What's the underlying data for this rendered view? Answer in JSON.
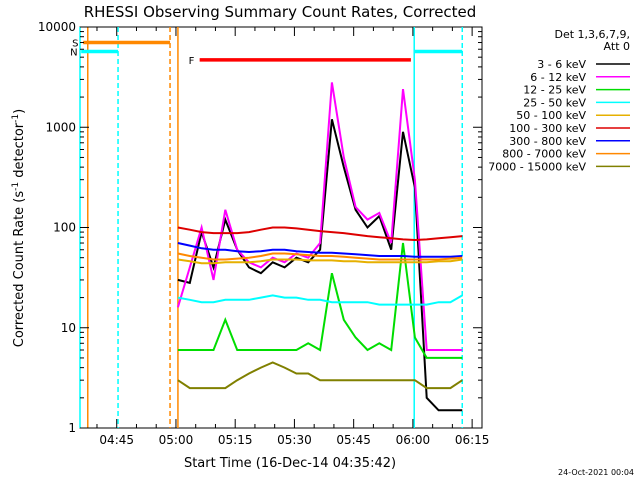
{
  "chart_data": {
    "type": "line",
    "title": "RHESSI Observing Summary Count Rates, Corrected",
    "xlabel": "Start Time (16-Dec-14 04:35:42)",
    "ylabel_main": "Corrected Count Rate (s",
    "ylabel_sup1": "-1",
    "ylabel_mid": " detector",
    "ylabel_sup2": "-1",
    "ylabel_end": ")",
    "y_scale": "log",
    "ylim": [
      1,
      10000
    ],
    "xlim_minutes": [
      "04:35:42",
      "06:17:30"
    ],
    "x_ticks": [
      "04:45",
      "05:00",
      "05:15",
      "05:30",
      "05:45",
      "06:00",
      "06:15"
    ],
    "y_ticks": [
      "1",
      "10",
      "100",
      "1000",
      "10000"
    ],
    "legend": {
      "placement": "right",
      "header_line1": "Det 1,3,6,7,9,",
      "header_line2": "Att 0",
      "entries": [
        {
          "label": "3 - 6 keV",
          "color": "#000000"
        },
        {
          "label": "6 - 12 keV",
          "color": "#ff00ff"
        },
        {
          "label": "12 - 25 keV",
          "color": "#00dd00"
        },
        {
          "label": "25 - 50 keV",
          "color": "#00ffff"
        },
        {
          "label": "50 - 100 keV",
          "color": "#e6b000"
        },
        {
          "label": "100 - 300 keV",
          "color": "#dd0000"
        },
        {
          "label": "300 - 800 keV",
          "color": "#0000ff"
        },
        {
          "label": "800 - 7000 keV",
          "color": "#ff8800"
        },
        {
          "label": "7000 - 15000 keV",
          "color": "#808000"
        }
      ]
    },
    "flags": [
      {
        "label": "S",
        "color": "#ff8800",
        "start": "04:36:30",
        "end": "04:58:30",
        "level": 7000
      },
      {
        "label": "N",
        "color": "#00ffff",
        "start": "04:36:00",
        "end": "04:45:20",
        "level": 5700
      },
      {
        "label": "F",
        "color": "#ff0000",
        "start": "05:06:00",
        "end": "05:59:30",
        "level": 4700
      },
      {
        "label": "",
        "color": "#00ffff",
        "start": "06:00:30",
        "end": "06:12:30",
        "level": 5700
      }
    ],
    "vlines": [
      {
        "time": "04:35:42",
        "color": "#00ffff",
        "style": "solid"
      },
      {
        "time": "04:37:40",
        "color": "#ff8800",
        "style": "solid"
      },
      {
        "time": "04:45:20",
        "color": "#00ffff",
        "style": "dashed"
      },
      {
        "time": "04:58:30",
        "color": "#ff8800",
        "style": "dashed"
      },
      {
        "time": "05:00:30",
        "color": "#ff8800",
        "style": "solid"
      },
      {
        "time": "06:00:20",
        "color": "#00ffff",
        "style": "solid"
      },
      {
        "time": "06:12:30",
        "color": "#00ffff",
        "style": "dashed"
      }
    ],
    "series_time_minutes": [
      0,
      3,
      6,
      9,
      12,
      15,
      18,
      21,
      24,
      27,
      30,
      33,
      36,
      39,
      42,
      45,
      48,
      51,
      54,
      57,
      60,
      63,
      66,
      69,
      72
    ],
    "series_start": "05:00:30",
    "series": [
      {
        "name": "3 - 6 keV",
        "color": "#000000",
        "values": [
          30,
          28,
          90,
          40,
          120,
          60,
          40,
          35,
          45,
          40,
          50,
          45,
          60,
          1200,
          400,
          150,
          100,
          130,
          60,
          900,
          250,
          2,
          1.5,
          1.5,
          1.5
        ]
      },
      {
        "name": "6 - 12 keV",
        "color": "#ff00ff",
        "values": [
          16,
          40,
          100,
          30,
          150,
          60,
          45,
          40,
          50,
          45,
          55,
          50,
          70,
          2800,
          500,
          160,
          120,
          140,
          70,
          2400,
          300,
          6,
          6,
          6,
          6
        ]
      },
      {
        "name": "12 - 25 keV",
        "color": "#00dd00",
        "values": [
          6,
          6,
          6,
          6,
          12,
          6,
          6,
          6,
          6,
          6,
          6,
          7,
          6,
          35,
          12,
          8,
          6,
          7,
          6,
          70,
          8,
          5,
          5,
          5,
          5
        ]
      },
      {
        "name": "25 - 50 keV",
        "color": "#00ffff",
        "values": [
          20,
          19,
          18,
          18,
          19,
          19,
          19,
          20,
          21,
          20,
          20,
          19,
          19,
          18,
          18,
          18,
          18,
          17,
          17,
          17,
          17,
          17,
          18,
          18,
          21
        ]
      },
      {
        "name": "50 - 100 keV",
        "color": "#e6b000",
        "values": [
          48,
          46,
          44,
          44,
          45,
          45,
          45,
          46,
          48,
          48,
          48,
          47,
          47,
          47,
          46,
          46,
          45,
          45,
          45,
          45,
          45,
          45,
          46,
          46,
          48
        ]
      },
      {
        "name": "100 - 300 keV",
        "color": "#dd0000",
        "values": [
          100,
          95,
          90,
          88,
          88,
          88,
          90,
          95,
          100,
          100,
          98,
          95,
          92,
          90,
          88,
          85,
          82,
          80,
          78,
          76,
          75,
          76,
          78,
          80,
          82
        ]
      },
      {
        "name": "300 - 800 keV",
        "color": "#0000ff",
        "values": [
          70,
          66,
          62,
          60,
          60,
          58,
          57,
          58,
          60,
          60,
          58,
          57,
          56,
          56,
          55,
          54,
          53,
          52,
          52,
          52,
          51,
          51,
          51,
          51,
          52
        ]
      },
      {
        "name": "800 - 7000 keV",
        "color": "#ff8800",
        "values": [
          55,
          52,
          50,
          48,
          48,
          49,
          50,
          52,
          55,
          55,
          54,
          53,
          52,
          52,
          51,
          50,
          49,
          48,
          48,
          48,
          48,
          48,
          48,
          49,
          50
        ]
      },
      {
        "name": "7000 - 15000 keV",
        "color": "#808000",
        "values": [
          3,
          2.5,
          2.5,
          2.5,
          2.5,
          3,
          3.5,
          4,
          4.5,
          4,
          3.5,
          3.5,
          3,
          3,
          3,
          3,
          3,
          3,
          3,
          3,
          3,
          2.5,
          2.5,
          2.5,
          3
        ]
      }
    ]
  },
  "footer": {
    "timestamp": "24-Oct-2021 00:04"
  }
}
